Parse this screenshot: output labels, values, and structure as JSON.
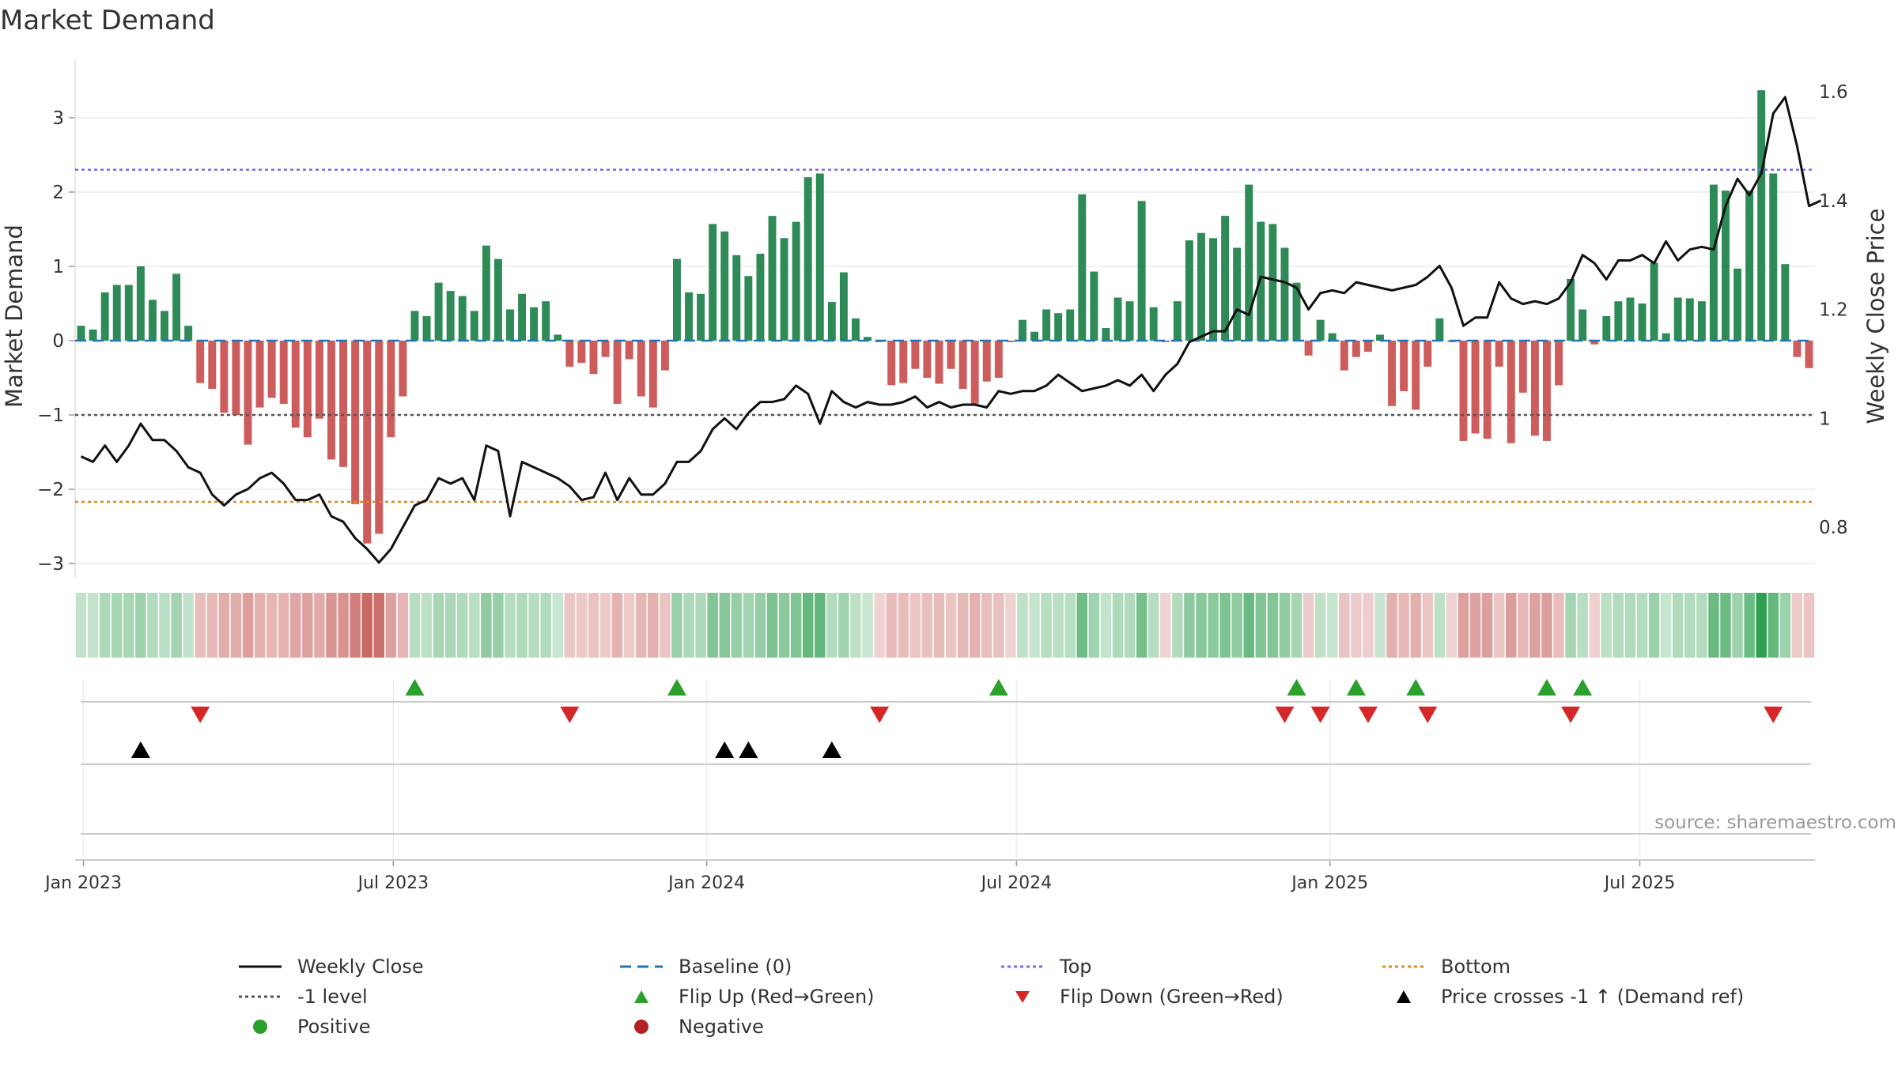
{
  "title": "Market Demand",
  "source": "source: sharemaestro.com",
  "colors": {
    "positive": "#2e8b57",
    "negative": "#cd5c5c",
    "price": "#111111",
    "baseline": "#1f77b4",
    "top": "#7b68ee",
    "bottom": "#e08b1c",
    "minus1": "#555555",
    "flip_up": "#2ca02c",
    "flip_down": "#d62728",
    "cross": "#000000"
  },
  "chart_data": {
    "type": "bar+line",
    "title": "Market Demand",
    "ylabel_left": "Market Demand",
    "ylabel_right": "Weekly Close Price",
    "ylim_left": [
      -3.3,
      3.75
    ],
    "ylim_right": [
      0.725,
      1.625
    ],
    "yticks_left": [
      "3",
      "2",
      "1",
      "0",
      "−1",
      "−2",
      "−3"
    ],
    "yticks_left_values": [
      3,
      2,
      1,
      0,
      -1,
      -2,
      -3
    ],
    "yticks_right": [
      "1.6",
      "1.4",
      "1.2",
      "1",
      "0.8"
    ],
    "yticks_right_values": [
      1.6,
      1.4,
      1.2,
      1.0,
      0.8
    ],
    "x_ticks": [
      "Jan 2023",
      "Jul 2023",
      "Jan 2024",
      "Jul 2024",
      "Jan 2025",
      "Jul 2025"
    ],
    "x_tick_weeks": [
      0.7,
      26.7,
      53,
      79,
      105.3,
      131.3
    ],
    "top_level": 2.3,
    "bottom_level": -2.17,
    "minus1_level": -1.0,
    "demand": [
      0.2,
      0.15,
      0.65,
      0.75,
      0.75,
      1.0,
      0.55,
      0.4,
      0.9,
      0.2,
      -0.57,
      -0.65,
      -0.97,
      -1.0,
      -1.4,
      -0.9,
      -0.77,
      -0.85,
      -1.17,
      -1.3,
      -1.05,
      -1.6,
      -1.7,
      -2.2,
      -2.73,
      -2.6,
      -1.3,
      -0.75,
      0.4,
      0.33,
      0.78,
      0.67,
      0.6,
      0.4,
      1.28,
      1.1,
      0.42,
      0.63,
      0.45,
      0.53,
      0.08,
      -0.35,
      -0.3,
      -0.45,
      -0.22,
      -0.85,
      -0.25,
      -0.75,
      -0.9,
      -0.4,
      1.1,
      0.65,
      0.63,
      1.57,
      1.47,
      1.15,
      0.87,
      1.17,
      1.68,
      1.38,
      1.6,
      2.2,
      2.25,
      0.52,
      0.92,
      0.3,
      0.05,
      -0.02,
      -0.6,
      -0.57,
      -0.38,
      -0.5,
      -0.58,
      -0.38,
      -0.65,
      -0.85,
      -0.55,
      -0.5,
      -0.02,
      0.28,
      0.12,
      0.42,
      0.37,
      0.42,
      1.97,
      0.93,
      0.17,
      0.58,
      0.53,
      1.88,
      0.45,
      -0.02,
      0.53,
      1.35,
      1.45,
      1.38,
      1.68,
      1.25,
      2.1,
      1.6,
      1.57,
      1.25,
      0.78,
      -0.2,
      0.28,
      0.1,
      -0.4,
      -0.22,
      -0.15,
      0.08,
      -0.88,
      -0.68,
      -0.93,
      -0.35,
      0.3,
      -0.02,
      -1.35,
      -1.25,
      -1.32,
      -0.35,
      -1.38,
      -0.7,
      -1.28,
      -1.35,
      -0.6,
      0.83,
      0.42,
      -0.05,
      0.33,
      0.53,
      0.58,
      0.5,
      1.05,
      0.1,
      0.58,
      0.57,
      0.53,
      2.1,
      2.02,
      0.97,
      2.02,
      3.37,
      2.25,
      1.03,
      -0.22,
      -0.37
    ],
    "price": [
      0.93,
      0.92,
      0.95,
      0.92,
      0.95,
      0.99,
      0.96,
      0.96,
      0.94,
      0.91,
      0.9,
      0.86,
      0.84,
      0.86,
      0.87,
      0.89,
      0.9,
      0.88,
      0.85,
      0.85,
      0.86,
      0.82,
      0.81,
      0.78,
      0.76,
      0.735,
      0.76,
      0.8,
      0.84,
      0.85,
      0.89,
      0.88,
      0.89,
      0.85,
      0.95,
      0.94,
      0.82,
      0.92,
      0.91,
      0.9,
      0.89,
      0.875,
      0.85,
      0.855,
      0.9,
      0.85,
      0.89,
      0.86,
      0.86,
      0.88,
      0.92,
      0.92,
      0.94,
      0.98,
      1.0,
      0.98,
      1.01,
      1.03,
      1.03,
      1.035,
      1.06,
      1.045,
      0.99,
      1.05,
      1.03,
      1.02,
      1.03,
      1.025,
      1.025,
      1.03,
      1.04,
      1.02,
      1.03,
      1.02,
      1.025,
      1.025,
      1.02,
      1.05,
      1.045,
      1.05,
      1.05,
      1.06,
      1.08,
      1.065,
      1.05,
      1.055,
      1.06,
      1.07,
      1.06,
      1.08,
      1.05,
      1.08,
      1.1,
      1.14,
      1.15,
      1.16,
      1.16,
      1.2,
      1.19,
      1.26,
      1.255,
      1.25,
      1.24,
      1.2,
      1.23,
      1.235,
      1.23,
      1.25,
      1.245,
      1.24,
      1.235,
      1.24,
      1.245,
      1.26,
      1.28,
      1.24,
      1.17,
      1.185,
      1.185,
      1.25,
      1.22,
      1.21,
      1.215,
      1.21,
      1.22,
      1.25,
      1.3,
      1.285,
      1.255,
      1.29,
      1.29,
      1.3,
      1.285,
      1.325,
      1.29,
      1.31,
      1.315,
      1.31,
      1.39,
      1.44,
      1.41,
      1.45,
      1.56,
      1.59,
      1.5,
      1.39,
      1.4
    ],
    "strip_intensity_note": "heat strip colour follows demand sign and magnitude",
    "flip_up_weeks": [
      28,
      50,
      77,
      102,
      107,
      112,
      123,
      126
    ],
    "flip_down_weeks": [
      10,
      41,
      67,
      101,
      104,
      108,
      113,
      125,
      142
    ],
    "price_cross_weeks": [
      5,
      54,
      56,
      63
    ]
  },
  "legend": [
    {
      "label": "Weekly Close",
      "marker": "solid-line"
    },
    {
      "label": "Baseline (0)",
      "marker": "dashed-line"
    },
    {
      "label": "Top",
      "marker": "dotted-purple-line"
    },
    {
      "label": "Bottom",
      "marker": "dotted-orange-line"
    },
    {
      "label": "-1 level",
      "marker": "dotted-grey-line"
    },
    {
      "label": "Flip Up (Red→Green)",
      "marker": "green-up-triangle"
    },
    {
      "label": "Flip Down (Green→Red)",
      "marker": "red-down-triangle"
    },
    {
      "label": "Price crosses -1 ↑ (Demand ref)",
      "marker": "black-up-triangle"
    },
    {
      "label": "Positive",
      "marker": "green-dot"
    },
    {
      "label": "Negative",
      "marker": "red-dot"
    }
  ]
}
